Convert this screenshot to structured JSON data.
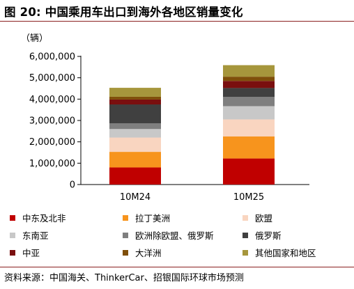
{
  "header": {
    "title": "图 20: 中国乘用车出口到海外各地区销量变化"
  },
  "footer": {
    "source": "资料来源：中国海关、ThinkerCar、招银国际环球市场预测"
  },
  "chart_data": {
    "type": "bar",
    "stacked": true,
    "title": "",
    "unit": "（辆）",
    "xlabel": "",
    "ylabel": "",
    "ylim": [
      0,
      6000000
    ],
    "yticks": [
      0,
      1000000,
      2000000,
      3000000,
      4000000,
      5000000,
      6000000
    ],
    "ytick_labels": [
      "0",
      "1,000,000",
      "2,000,000",
      "3,000,000",
      "4,000,000",
      "5,000,000",
      "6,000,000"
    ],
    "grid": false,
    "legend_position": "bottom",
    "categories": [
      "10M24",
      "10M25"
    ],
    "series": [
      {
        "name": "中东及北非",
        "color": "#c00000",
        "values": [
          800000,
          1220000
        ]
      },
      {
        "name": "拉丁美洲",
        "color": "#f7941d",
        "values": [
          730000,
          1030000
        ]
      },
      {
        "name": "欧盟",
        "color": "#f9d5c0",
        "values": [
          670000,
          800000
        ]
      },
      {
        "name": "东南亚",
        "color": "#c8c8c8",
        "values": [
          400000,
          620000
        ]
      },
      {
        "name": "欧洲除欧盟、俄罗斯",
        "color": "#7f7f7f",
        "values": [
          270000,
          430000
        ]
      },
      {
        "name": "俄罗斯",
        "color": "#404040",
        "values": [
          880000,
          420000
        ]
      },
      {
        "name": "中亚",
        "color": "#7a0f0f",
        "values": [
          230000,
          330000
        ]
      },
      {
        "name": "大洋洲",
        "color": "#7f4f0a",
        "values": [
          130000,
          200000
        ]
      },
      {
        "name": "其他国家和地区",
        "color": "#a6963c",
        "values": [
          420000,
          540000
        ]
      }
    ]
  }
}
